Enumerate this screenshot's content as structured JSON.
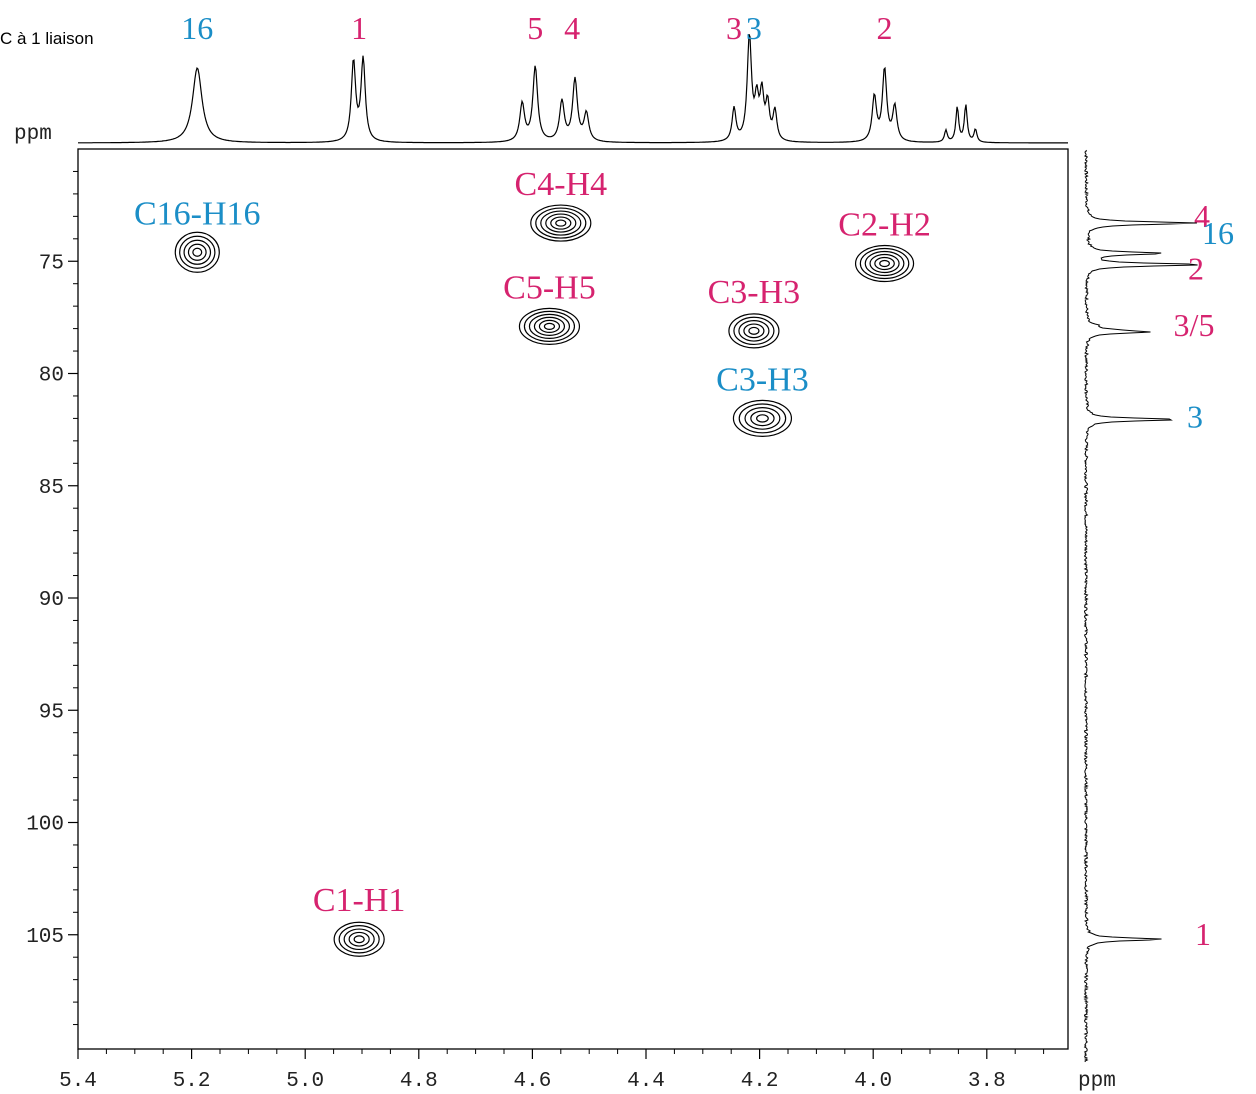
{
  "colors": {
    "series_main": "#d6236f",
    "series_alt": "#1b8ec7",
    "ink": "#000000"
  },
  "chart_data": {
    "type": "scatter",
    "title": "",
    "annotation_topleft": "C à 1 liaison",
    "x_axis": {
      "unit_label": "ppm",
      "range": [
        5.4,
        3.7
      ],
      "reversed": true,
      "ticks": [
        "5.4",
        "5.2",
        "5.0",
        "4.8",
        "4.6",
        "4.4",
        "4.2",
        "4.0",
        "3.8"
      ]
    },
    "y_axis": {
      "unit_label": "ppm",
      "range": [
        70,
        110
      ],
      "reversed": true,
      "ticks": [
        "75",
        "80",
        "85",
        "90",
        "95",
        "100",
        "105"
      ]
    },
    "grid": false,
    "series": [
      {
        "color": "#d6236f",
        "points": [
          {
            "label": "C1-H1",
            "h": 4.905,
            "c": 105.2
          },
          {
            "label": "C2-H2",
            "h": 3.98,
            "c": 75.1
          },
          {
            "label": "C3-H3",
            "h": 4.21,
            "c": 78.1
          },
          {
            "label": "C4-H4",
            "h": 4.55,
            "c": 73.3
          },
          {
            "label": "C5-H5",
            "h": 4.57,
            "c": 77.9
          }
        ]
      },
      {
        "color": "#1b8ec7",
        "points": [
          {
            "label": "C16-H16",
            "h": 5.19,
            "c": 74.6
          },
          {
            "label": "C3-H3",
            "h": 4.195,
            "c": 82.0
          }
        ]
      }
    ],
    "proton_projection_labels": [
      {
        "text": "16",
        "h": 5.19,
        "color": "#1b8ec7"
      },
      {
        "text": "1",
        "h": 4.905,
        "color": "#d6236f"
      },
      {
        "text": "5",
        "h": 4.595,
        "color": "#d6236f"
      },
      {
        "text": "4",
        "h": 4.53,
        "color": "#d6236f"
      },
      {
        "text": "3",
        "h": 4.245,
        "color": "#d6236f"
      },
      {
        "text": "3",
        "h": 4.21,
        "color": "#1b8ec7"
      },
      {
        "text": "2",
        "h": 3.98,
        "color": "#d6236f"
      }
    ],
    "carbon_projection_labels": [
      {
        "text": "4",
        "c": 73.3,
        "color": "#d6236f"
      },
      {
        "text": "16",
        "c": 74.1,
        "color": "#1b8ec7"
      },
      {
        "text": "2",
        "c": 75.6,
        "color": "#d6236f"
      },
      {
        "text": "3/5",
        "c": 78.1,
        "color": "#d6236f"
      },
      {
        "text": "3",
        "c": 82.1,
        "color": "#1b8ec7"
      },
      {
        "text": "1",
        "c": 105.2,
        "color": "#d6236f"
      }
    ]
  }
}
